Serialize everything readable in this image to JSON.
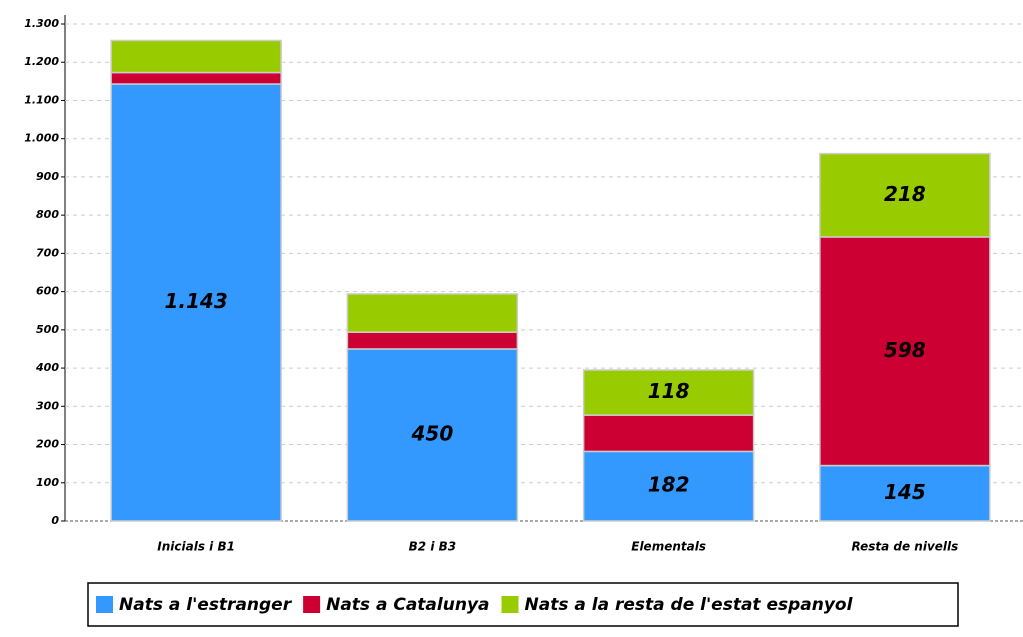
{
  "chart_data": {
    "type": "stacked_bar",
    "categories": [
      "Inicials i B1",
      "B2 i B3",
      "Elementals",
      "Resta de nivells"
    ],
    "series": [
      {
        "name": "Nats a l'estranger",
        "color": "#3399ff",
        "values": [
          1143,
          450,
          182,
          145
        ],
        "value_labels": [
          "1.143",
          "450",
          "182",
          "145"
        ]
      },
      {
        "name": "Nats a Catalunya",
        "color": "#cc0033",
        "values": [
          30,
          44,
          95,
          598
        ],
        "value_labels": [
          null,
          null,
          null,
          "598"
        ]
      },
      {
        "name": "Nats a la resta de l'estat espanyol",
        "color": "#99cc00",
        "values": [
          84,
          100,
          118,
          218
        ],
        "value_labels": [
          null,
          null,
          "118",
          "218"
        ]
      }
    ],
    "ylim": [
      0,
      1300
    ],
    "yticks": [
      0,
      100,
      200,
      300,
      400,
      500,
      600,
      700,
      800,
      900,
      {
        "value": 1000,
        "label": "1.000"
      },
      {
        "value": 1100,
        "label": "1.100"
      },
      {
        "value": 1200,
        "label": "1.200"
      },
      {
        "value": 1300,
        "label": "1.300"
      }
    ],
    "grid": true,
    "legend": "bottom"
  }
}
